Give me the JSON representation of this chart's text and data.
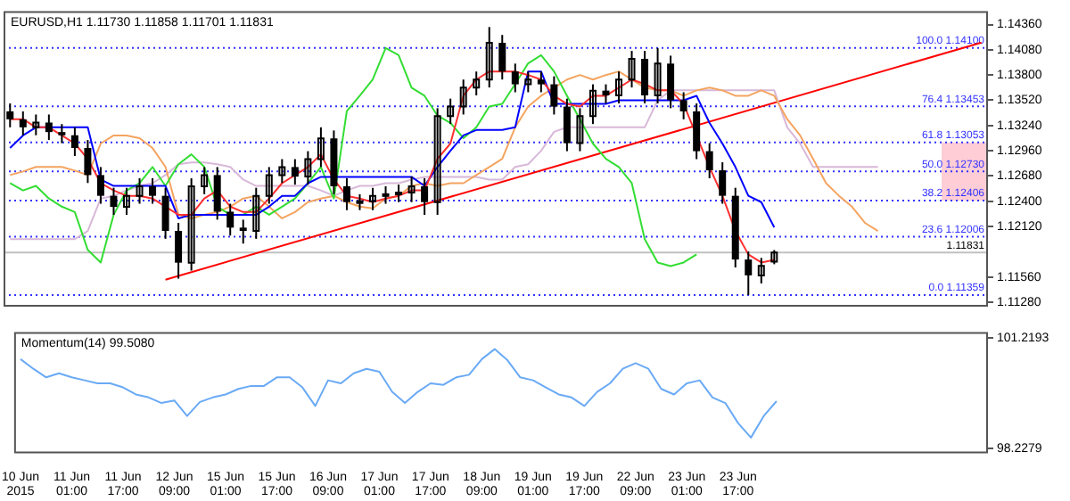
{
  "chart_data": [
    {
      "type": "candlestick",
      "title": "EURUSD,H1 1.11730 1.11858 1.11701 1.11831",
      "tick_labels": "y",
      "color": "#000000",
      "categories": [
        null,
        null,
        null,
        null,
        null,
        null,
        null,
        null,
        null,
        null,
        null,
        null,
        null,
        null,
        null,
        null,
        null,
        null,
        null,
        null,
        null,
        null,
        null,
        null,
        null,
        null,
        null,
        null,
        null,
        null,
        null,
        null,
        null,
        null,
        null,
        null,
        null,
        null,
        null,
        null,
        null,
        null,
        null,
        null,
        null,
        null,
        null,
        null,
        null,
        null,
        null,
        null,
        null,
        null,
        null,
        null,
        null,
        null,
        null,
        null,
        null,
        null,
        null,
        null,
        null,
        null,
        null,
        null,
        null,
        null,
        null,
        null,
        null,
        null,
        null,
        null
      ],
      "ohlc": [
        [
          1.13397,
          1.13485,
          1.1322,
          1.13309
        ],
        [
          1.13309,
          1.13397,
          1.13132,
          1.1322
        ],
        [
          1.1322,
          1.13362,
          1.13132,
          1.13273
        ],
        [
          1.13273,
          1.13362,
          1.13079,
          1.13167
        ],
        [
          1.13167,
          1.13256,
          1.13044,
          1.13132
        ],
        [
          1.13132,
          1.1322,
          1.12902,
          1.12991
        ],
        [
          1.12991,
          1.13079,
          1.12602,
          1.1269
        ],
        [
          1.1269,
          1.12779,
          1.12372,
          1.1246
        ],
        [
          1.1246,
          1.12549,
          1.12248,
          1.12337
        ],
        [
          1.12337,
          1.12549,
          1.12248,
          1.1246
        ],
        [
          1.1246,
          1.12655,
          1.12372,
          1.12566
        ],
        [
          1.12566,
          1.12655,
          1.12372,
          1.1246
        ],
        [
          1.1246,
          1.12549,
          1.11983,
          1.12071
        ],
        [
          1.12071,
          1.1216,
          1.11541,
          1.11718
        ],
        [
          1.11718,
          1.12655,
          1.1163,
          1.12566
        ],
        [
          1.12566,
          1.12779,
          1.12478,
          1.1269
        ],
        [
          1.1269,
          1.12779,
          1.12195,
          1.12284
        ],
        [
          1.12284,
          1.12372,
          1.12019,
          1.12107
        ],
        [
          1.12107,
          1.12195,
          1.1193,
          1.12071
        ],
        [
          1.12071,
          1.12549,
          1.11983,
          1.1246
        ],
        [
          1.1246,
          1.12779,
          1.12372,
          1.1269
        ],
        [
          1.1269,
          1.12867,
          1.12602,
          1.12779
        ],
        [
          1.12779,
          1.12867,
          1.12584,
          1.12673
        ],
        [
          1.12673,
          1.12955,
          1.12584,
          1.12867
        ],
        [
          1.12867,
          1.1322,
          1.12779,
          1.13097
        ],
        [
          1.13097,
          1.13185,
          1.12478,
          1.12566
        ],
        [
          1.12566,
          1.12655,
          1.12301,
          1.1239
        ],
        [
          1.1239,
          1.12478,
          1.12301,
          1.124
        ],
        [
          1.124,
          1.12549,
          1.12301,
          1.1246
        ],
        [
          1.1246,
          1.12566,
          1.12372,
          1.12478
        ],
        [
          1.12478,
          1.12584,
          1.1239,
          1.12496
        ],
        [
          1.12496,
          1.12673,
          1.1239,
          1.12566
        ],
        [
          1.12566,
          1.12655,
          1.12248,
          1.1239
        ],
        [
          1.1239,
          1.13432,
          1.12248,
          1.13344
        ],
        [
          1.13344,
          1.13538,
          1.13256,
          1.1345
        ],
        [
          1.1345,
          1.1375,
          1.13362,
          1.13662
        ],
        [
          1.13662,
          1.13839,
          1.13574,
          1.1375
        ],
        [
          1.1375,
          1.14333,
          1.13662,
          1.14157
        ],
        [
          1.14157,
          1.14245,
          1.1375,
          1.13839
        ],
        [
          1.13839,
          1.13927,
          1.13609,
          1.13697
        ],
        [
          1.13697,
          1.13839,
          1.13609,
          1.1375
        ],
        [
          1.1375,
          1.13839,
          1.13609,
          1.13697
        ],
        [
          1.13697,
          1.13786,
          1.13362,
          1.1345
        ],
        [
          1.1345,
          1.13538,
          1.12955,
          1.13044
        ],
        [
          1.13044,
          1.13432,
          1.12955,
          1.13344
        ],
        [
          1.13344,
          1.13697,
          1.13256,
          1.13627
        ],
        [
          1.13627,
          1.13697,
          1.13485,
          1.13574
        ],
        [
          1.13574,
          1.13839,
          1.13485,
          1.1375
        ],
        [
          1.1375,
          1.14068,
          1.13662,
          1.1398
        ],
        [
          1.1398,
          1.14068,
          1.13485,
          1.13574
        ],
        [
          1.13574,
          1.141,
          1.13485,
          1.13927
        ],
        [
          1.13927,
          1.14015,
          1.13432,
          1.13521
        ],
        [
          1.13521,
          1.13609,
          1.13309,
          1.13397
        ],
        [
          1.13397,
          1.13485,
          1.12867,
          1.12955
        ],
        [
          1.12955,
          1.13044,
          1.12655,
          1.12743
        ],
        [
          1.12743,
          1.12832,
          1.12372,
          1.1246
        ],
        [
          1.1246,
          1.12549,
          1.11665,
          1.11753
        ],
        [
          1.11753,
          1.11842,
          1.11359,
          1.11577
        ],
        [
          1.11577,
          1.11771,
          1.11488,
          1.11683
        ],
        [
          1.1173,
          1.11858,
          1.11701,
          1.11831
        ],
        null,
        null,
        null,
        null,
        null,
        null,
        null,
        null,
        null,
        null,
        null,
        null,
        null,
        null,
        null,
        null
      ],
      "series": [
        {
          "type": "line",
          "color": "#ff3030",
          "values": [
            1.1331,
            1.1331,
            1.1322,
            1.1322,
            1.1313,
            1.1304,
            1.1287,
            1.126,
            1.1252,
            1.1246,
            1.1246,
            1.1243,
            1.1234,
            1.1225,
            1.1225,
            1.1243,
            1.1252,
            1.1234,
            1.1228,
            1.1228,
            1.1243,
            1.126,
            1.1269,
            1.1278,
            1.1292,
            1.1264,
            1.1246,
            1.1243,
            1.1239,
            1.1243,
            1.1246,
            1.1252,
            1.1252,
            1.1287,
            1.1304,
            1.1357,
            1.1375,
            1.1384,
            1.1384,
            1.1384,
            1.138,
            1.1375,
            1.1357,
            1.1348,
            1.1345,
            1.1357,
            1.1357,
            1.1366,
            1.1375,
            1.137,
            1.1363,
            1.1363,
            1.1348,
            null,
            1.1278,
            1.1246,
            1.1207,
            1.1181,
            1.1172,
            1.1175,
            null,
            null,
            null,
            null,
            null,
            null,
            null,
            null,
            null,
            null,
            null,
            null,
            null,
            null,
            null,
            null
          ]
        },
        {
          "type": "line",
          "color": "#0000ff",
          "values": [
            1.1299,
            1.1313,
            1.1322,
            1.1322,
            1.1322,
            1.1322,
            1.1322,
            1.1264,
            1.1257,
            1.1257,
            1.1257,
            1.1257,
            1.1257,
            1.1221,
            1.1225,
            1.1225,
            1.1225,
            1.1225,
            1.1225,
            1.1225,
            1.1234,
            1.1246,
            1.1246,
            1.126,
            1.1267,
            1.1267,
            1.1267,
            1.1267,
            1.1267,
            1.1267,
            1.1267,
            1.1267,
            1.1257,
            1.1278,
            1.1296,
            1.1313,
            1.1319,
            1.1319,
            1.1319,
            1.1322,
            1.1384,
            1.1384,
            1.1348,
            1.1348,
            1.1348,
            1.1348,
            1.1348,
            1.1352,
            1.1352,
            1.1352,
            1.1352,
            1.1352,
            1.1352,
            1.1357,
            1.1327,
            1.1304,
            1.1278,
            1.1246,
            1.1239,
            1.1211,
            null,
            null,
            null,
            null,
            null,
            null,
            null,
            null,
            null,
            null,
            null,
            null,
            null,
            null,
            null,
            null
          ]
        },
        {
          "type": "line",
          "color": "#33dd33",
          "values": [
            1.126,
            1.1252,
            1.1257,
            1.1243,
            1.1234,
            1.1228,
            1.1186,
            1.1172,
            1.1225,
            1.1252,
            1.126,
            1.1278,
            1.1257,
            1.1281,
            1.1292,
            1.1278,
            1.1234,
            1.1225,
            1.1225,
            1.1234,
            1.1225,
            1.1234,
            1.1243,
            1.126,
            1.1278,
            1.1243,
            1.134,
            1.1357,
            1.1375,
            1.141,
            1.1402,
            1.1366,
            1.1357,
            1.1335,
            1.1327,
            1.131,
            1.1322,
            1.1345,
            1.1348,
            1.137,
            1.1393,
            1.1402,
            1.1384,
            1.1357,
            1.1331,
            1.1304,
            1.1287,
            1.1278,
            1.126,
            1.1198,
            1.1172,
            1.1168,
            1.1172,
            1.1181,
            null,
            null,
            null,
            null,
            null,
            null,
            null,
            null,
            null,
            null,
            null,
            null,
            null,
            null,
            null,
            null,
            null,
            null,
            null,
            null,
            null,
            null
          ]
        },
        {
          "type": "line",
          "color": "#f4a460",
          "values": [
            1.1269,
            1.1273,
            1.1278,
            1.1278,
            1.1278,
            1.1274,
            1.1269,
            1.1304,
            1.1313,
            1.1313,
            1.131,
            1.1299,
            1.1278,
            1.1225,
            1.1221,
            1.1225,
            1.1228,
            1.1234,
            1.1243,
            1.1246,
            1.1234,
            1.1221,
            1.1228,
            1.1239,
            1.1243,
            1.1246,
            1.1239,
            1.1234,
            1.1232,
            1.1243,
            1.1246,
            1.1257,
            1.126,
            1.1257,
            1.126,
            1.126,
            1.1269,
            1.1278,
            1.1287,
            1.1322,
            1.1345,
            1.1357,
            1.1366,
            1.1375,
            1.138,
            1.1375,
            1.138,
            1.1384,
            1.1375,
            1.1366,
            1.1363,
            1.1363,
            1.1357,
            1.1363,
            1.1366,
            1.1363,
            1.1357,
            1.1357,
            1.1363,
            1.1357,
            1.1331,
            1.1313,
            1.1287,
            1.126,
            1.1246,
            1.1234,
            1.1216,
            1.1207,
            null,
            null,
            null,
            null,
            null,
            null,
            null,
            null
          ]
        },
        {
          "type": "line",
          "color": "#d8b8d8",
          "values": [
            1.1198,
            1.1198,
            1.1198,
            1.1198,
            1.1198,
            1.1198,
            1.1207,
            1.1243,
            1.1246,
            1.1252,
            1.1257,
            1.126,
            1.1269,
            1.1281,
            1.1283,
            1.1283,
            1.1281,
            1.1278,
            1.1264,
            1.1257,
            1.1257,
            1.1257,
            1.1257,
            1.1257,
            1.1252,
            1.1246,
            1.1252,
            1.1257,
            1.1257,
            1.126,
            1.126,
            1.1264,
            1.1267,
            1.1267,
            1.1267,
            1.1267,
            1.1267,
            1.1264,
            1.1264,
            1.1278,
            1.1281,
            1.1296,
            1.1317,
            1.1322,
            1.1322,
            1.1322,
            1.1322,
            1.1322,
            1.1322,
            1.1322,
            1.1352,
            1.1363,
            1.1363,
            1.1363,
            1.1363,
            1.1363,
            1.1363,
            1.1363,
            1.1363,
            1.1363,
            1.1322,
            1.1304,
            1.1278,
            1.1278,
            1.1278,
            1.1278,
            1.1278,
            1.1278,
            null,
            null,
            null,
            null,
            null,
            null,
            null,
            null
          ]
        },
        {
          "type": "line",
          "color": "#ff0000",
          "values": [
            null,
            null,
            null,
            null,
            null,
            null,
            null,
            null,
            null,
            null,
            null,
            null,
            1.1153,
            null,
            null,
            null,
            null,
            null,
            null,
            null,
            null,
            null,
            null,
            null,
            null,
            null,
            null,
            null,
            null,
            null,
            null,
            null,
            null,
            null,
            null,
            null,
            null,
            null,
            null,
            null,
            null,
            null,
            null,
            null,
            null,
            null,
            null,
            null,
            null,
            null,
            null,
            null,
            null,
            null,
            null,
            null,
            null,
            null,
            null,
            null,
            null,
            null,
            null,
            null,
            null,
            null,
            null,
            null,
            null,
            null,
            null,
            null,
            null,
            null,
            null,
            1.1416
          ]
        }
      ],
      "ylim": [
        1.1123,
        1.1451
      ],
      "yticks": [
        {
          "value": 1.1436,
          "label": "1.14360"
        },
        {
          "value": 1.1408,
          "label": "1.14080"
        },
        {
          "value": 1.138,
          "label": "1.13800"
        },
        {
          "value": 1.1352,
          "label": "1.13520"
        },
        {
          "value": 1.1324,
          "label": "1.13240"
        },
        {
          "value": 1.1296,
          "label": "1.12960"
        },
        {
          "value": 1.1268,
          "label": "1.12680"
        },
        {
          "value": 1.124,
          "label": "1.12400"
        },
        {
          "value": 1.1212,
          "label": "1.12120"
        },
        {
          "value": 1.1156,
          "label": "1.11560"
        },
        {
          "value": 1.1128,
          "label": "1.11280"
        }
      ],
      "ref_lines": [
        {
          "axis": "y",
          "value": 1.141,
          "label": "100.0 1.14100",
          "color": "#3333ff",
          "line_style": "dotted"
        },
        {
          "axis": "y",
          "value": 1.13453,
          "label": "76.4 1.13453",
          "color": "#3333ff",
          "line_style": "dotted"
        },
        {
          "axis": "y",
          "value": 1.13053,
          "label": "61.8 1.13053",
          "color": "#3333ff",
          "line_style": "dotted"
        },
        {
          "axis": "y",
          "value": 1.1273,
          "label": "50.0 1.12730",
          "color": "#3333ff",
          "line_style": "dotted"
        },
        {
          "axis": "y",
          "value": 1.12406,
          "label": "38.2 1.12406",
          "color": "#3333ff",
          "line_style": "dotted"
        },
        {
          "axis": "y",
          "value": 1.12006,
          "label": "23.6 1.12006",
          "color": "#3333ff",
          "line_style": "dotted"
        },
        {
          "axis": "y",
          "value": 1.11359,
          "label": "0.0 1.11359",
          "color": "#3333ff",
          "line_style": "dotted"
        },
        {
          "axis": "y",
          "value": 1.11831,
          "label": "1.11831",
          "color": "#c0c0c0",
          "line_style": "solid"
        }
      ],
      "bands": [
        {
          "axis": "y",
          "from": 1.12406,
          "to": 1.13053,
          "color": "#ffc0cb"
        }
      ]
    },
    {
      "type": "line",
      "title": "Momentum(14) 99.5080",
      "color": "#6aaaf5",
      "categories": [
        "10 Jun 2015",
        null,
        null,
        null,
        "11 Jun 01:00",
        null,
        null,
        null,
        "11 Jun 17:00",
        null,
        null,
        null,
        "12 Jun 09:00",
        null,
        null,
        null,
        "15 Jun 01:00",
        null,
        null,
        null,
        "15 Jun 17:00",
        null,
        null,
        null,
        "16 Jun 09:00",
        null,
        null,
        null,
        "17 Jun 01:00",
        null,
        null,
        null,
        "17 Jun 17:00",
        null,
        null,
        null,
        "18 Jun 09:00",
        null,
        null,
        null,
        "19 Jun 01:00",
        null,
        null,
        null,
        "19 Jun 17:00",
        null,
        null,
        null,
        "22 Jun 09:00",
        null,
        null,
        null,
        "23 Jun 01:00",
        null,
        null,
        null,
        "23 Jun 17:00",
        null,
        null,
        null,
        null,
        null,
        null,
        null,
        null,
        null,
        null,
        null,
        null,
        null,
        null,
        null,
        null,
        null,
        null,
        null
      ],
      "values": [
        100.64,
        100.38,
        100.15,
        100.26,
        100.15,
        100.07,
        99.99,
        99.99,
        99.88,
        99.69,
        99.61,
        99.46,
        99.53,
        99.11,
        99.49,
        99.61,
        99.69,
        99.84,
        99.92,
        99.92,
        100.15,
        100.15,
        99.88,
        99.38,
        100.07,
        99.99,
        100.26,
        100.38,
        100.3,
        99.76,
        99.46,
        99.76,
        99.99,
        99.95,
        100.15,
        100.22,
        100.64,
        100.91,
        100.61,
        100.15,
        100.07,
        99.88,
        99.69,
        99.61,
        99.38,
        99.76,
        99.99,
        100.38,
        100.53,
        100.38,
        99.84,
        99.69,
        99.99,
        100.07,
        99.61,
        99.46,
        98.92,
        98.53,
        99.11,
        99.51,
        null,
        null,
        null,
        null,
        null,
        null,
        null,
        null,
        null,
        null,
        null,
        null,
        null,
        null,
        null,
        null
      ],
      "ylim": [
        98.11,
        101.37
      ],
      "yticks": [
        101.2193,
        98.2279
      ]
    }
  ]
}
